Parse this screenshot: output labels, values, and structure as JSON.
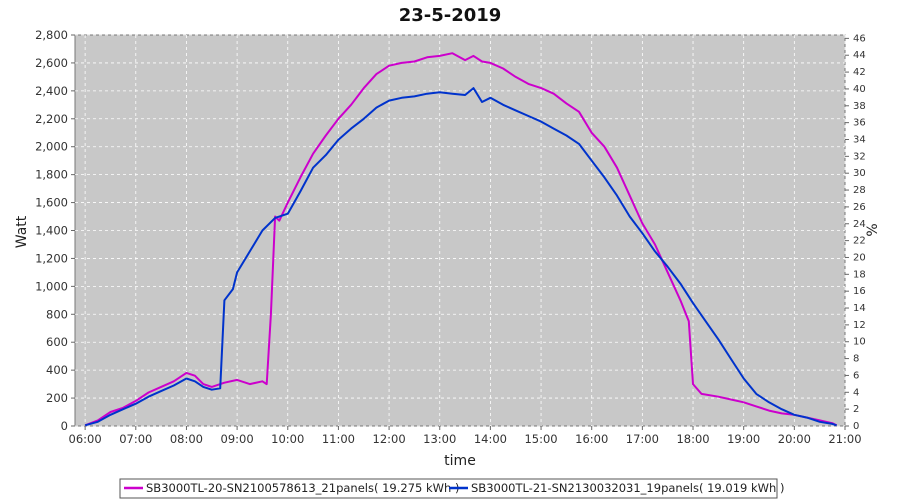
{
  "chart_data": {
    "type": "line",
    "title": "23-5-2019",
    "xlabel": "time",
    "ylabel": "Watt",
    "y2label": "%",
    "xlim": [
      "05:48",
      "21:00"
    ],
    "ylim": [
      0,
      2800
    ],
    "y2lim": [
      0,
      46.4
    ],
    "x_ticks": [
      "06:00",
      "07:00",
      "08:00",
      "09:00",
      "10:00",
      "11:00",
      "12:00",
      "13:00",
      "14:00",
      "15:00",
      "16:00",
      "17:00",
      "18:00",
      "19:00",
      "20:00",
      "21:00"
    ],
    "y_ticks": [
      "0",
      "200",
      "400",
      "600",
      "800",
      "1,000",
      "1,200",
      "1,400",
      "1,600",
      "1,800",
      "2,000",
      "2,200",
      "2,400",
      "2,600",
      "2,800"
    ],
    "y2_ticks": [
      "0",
      "2",
      "4",
      "6",
      "8",
      "10",
      "12",
      "14",
      "16",
      "18",
      "20",
      "22",
      "24",
      "26",
      "28",
      "30",
      "32",
      "34",
      "36",
      "38",
      "40",
      "42",
      "44",
      "46"
    ],
    "grid": true,
    "legend_position": "bottom",
    "background": "#c8c8c8",
    "series": [
      {
        "name": "SB3000TL-20-SN2100578613_21panels( 19.275 kWh )",
        "color": "#cc00cc",
        "points": [
          [
            "06:00",
            5
          ],
          [
            "06:15",
            40
          ],
          [
            "06:30",
            100
          ],
          [
            "06:45",
            130
          ],
          [
            "07:00",
            180
          ],
          [
            "07:15",
            240
          ],
          [
            "07:30",
            280
          ],
          [
            "07:45",
            320
          ],
          [
            "08:00",
            380
          ],
          [
            "08:10",
            360
          ],
          [
            "08:20",
            300
          ],
          [
            "08:30",
            280
          ],
          [
            "08:45",
            310
          ],
          [
            "09:00",
            330
          ],
          [
            "09:15",
            300
          ],
          [
            "09:30",
            320
          ],
          [
            "09:35",
            300
          ],
          [
            "09:40",
            800
          ],
          [
            "09:45",
            1500
          ],
          [
            "09:50",
            1470
          ],
          [
            "10:00",
            1600
          ],
          [
            "10:15",
            1780
          ],
          [
            "10:30",
            1950
          ],
          [
            "10:45",
            2080
          ],
          [
            "11:00",
            2200
          ],
          [
            "11:15",
            2300
          ],
          [
            "11:30",
            2420
          ],
          [
            "11:45",
            2520
          ],
          [
            "12:00",
            2580
          ],
          [
            "12:15",
            2600
          ],
          [
            "12:30",
            2610
          ],
          [
            "12:45",
            2640
          ],
          [
            "13:00",
            2650
          ],
          [
            "13:15",
            2670
          ],
          [
            "13:30",
            2620
          ],
          [
            "13:40",
            2650
          ],
          [
            "13:50",
            2610
          ],
          [
            "14:00",
            2600
          ],
          [
            "14:15",
            2560
          ],
          [
            "14:30",
            2500
          ],
          [
            "14:45",
            2450
          ],
          [
            "15:00",
            2420
          ],
          [
            "15:15",
            2380
          ],
          [
            "15:30",
            2310
          ],
          [
            "15:45",
            2250
          ],
          [
            "16:00",
            2100
          ],
          [
            "16:15",
            2000
          ],
          [
            "16:30",
            1850
          ],
          [
            "16:45",
            1650
          ],
          [
            "17:00",
            1450
          ],
          [
            "17:15",
            1300
          ],
          [
            "17:30",
            1100
          ],
          [
            "17:45",
            900
          ],
          [
            "17:55",
            750
          ],
          [
            "18:00",
            300
          ],
          [
            "18:10",
            230
          ],
          [
            "18:30",
            210
          ],
          [
            "18:45",
            190
          ],
          [
            "19:00",
            170
          ],
          [
            "19:15",
            140
          ],
          [
            "19:30",
            110
          ],
          [
            "19:45",
            90
          ],
          [
            "20:00",
            80
          ],
          [
            "20:15",
            60
          ],
          [
            "20:30",
            40
          ],
          [
            "20:45",
            20
          ],
          [
            "20:50",
            5
          ]
        ]
      },
      {
        "name": "SB3000TL-21-SN2130032031_19panels( 19.019 kWh )",
        "color": "#0033cc",
        "points": [
          [
            "06:00",
            5
          ],
          [
            "06:15",
            30
          ],
          [
            "06:30",
            80
          ],
          [
            "06:45",
            120
          ],
          [
            "07:00",
            160
          ],
          [
            "07:15",
            210
          ],
          [
            "07:30",
            250
          ],
          [
            "07:45",
            290
          ],
          [
            "08:00",
            340
          ],
          [
            "08:10",
            320
          ],
          [
            "08:20",
            280
          ],
          [
            "08:30",
            260
          ],
          [
            "08:40",
            270
          ],
          [
            "08:45",
            900
          ],
          [
            "08:55",
            980
          ],
          [
            "09:00",
            1100
          ],
          [
            "09:15",
            1250
          ],
          [
            "09:30",
            1400
          ],
          [
            "09:45",
            1490
          ],
          [
            "10:00",
            1520
          ],
          [
            "10:15",
            1680
          ],
          [
            "10:30",
            1850
          ],
          [
            "10:45",
            1940
          ],
          [
            "11:00",
            2050
          ],
          [
            "11:15",
            2130
          ],
          [
            "11:30",
            2200
          ],
          [
            "11:45",
            2280
          ],
          [
            "12:00",
            2330
          ],
          [
            "12:15",
            2350
          ],
          [
            "12:30",
            2360
          ],
          [
            "12:45",
            2380
          ],
          [
            "13:00",
            2390
          ],
          [
            "13:15",
            2380
          ],
          [
            "13:30",
            2370
          ],
          [
            "13:40",
            2420
          ],
          [
            "13:50",
            2320
          ],
          [
            "14:00",
            2350
          ],
          [
            "14:15",
            2300
          ],
          [
            "14:30",
            2260
          ],
          [
            "14:45",
            2220
          ],
          [
            "15:00",
            2180
          ],
          [
            "15:15",
            2130
          ],
          [
            "15:30",
            2080
          ],
          [
            "15:45",
            2020
          ],
          [
            "16:00",
            1900
          ],
          [
            "16:15",
            1780
          ],
          [
            "16:30",
            1650
          ],
          [
            "16:45",
            1500
          ],
          [
            "17:00",
            1380
          ],
          [
            "17:15",
            1250
          ],
          [
            "17:30",
            1140
          ],
          [
            "17:45",
            1020
          ],
          [
            "18:00",
            880
          ],
          [
            "18:15",
            750
          ],
          [
            "18:30",
            620
          ],
          [
            "18:45",
            480
          ],
          [
            "19:00",
            340
          ],
          [
            "19:15",
            230
          ],
          [
            "19:30",
            170
          ],
          [
            "19:45",
            120
          ],
          [
            "20:00",
            80
          ],
          [
            "20:15",
            60
          ],
          [
            "20:30",
            30
          ],
          [
            "20:45",
            15
          ],
          [
            "20:50",
            5
          ]
        ]
      }
    ]
  }
}
